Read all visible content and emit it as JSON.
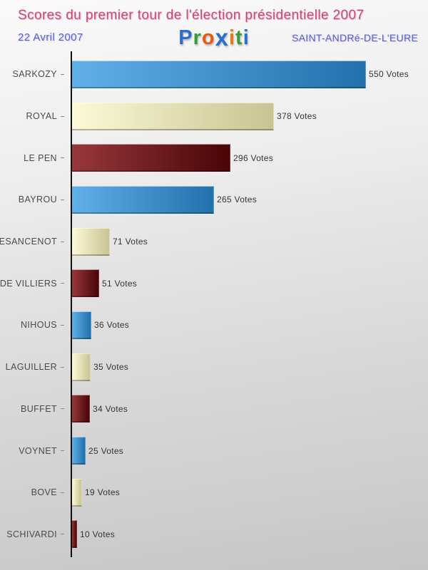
{
  "header": {
    "title": "Scores du premier tour de l'élection présidentielle 2007",
    "date": "22 Avril 2007",
    "place": "SAINT-ANDRé-DE-L'EURE",
    "logo": {
      "name": "Proxiti",
      "letters": [
        {
          "ch": "P",
          "color": "#2a70c8"
        },
        {
          "ch": "r",
          "color": "#3a9a3a"
        },
        {
          "ch": "o",
          "color": "#e55c0f"
        },
        {
          "ch": "x",
          "color": "#2a70c8",
          "bold_x": true
        },
        {
          "ch": "i",
          "color": "#e87b10"
        },
        {
          "ch": "t",
          "color": "#3a9a3a"
        },
        {
          "ch": "i",
          "color": "#2a70c8"
        }
      ]
    }
  },
  "chart_data": {
    "type": "bar",
    "orientation": "horizontal",
    "title": "Scores du premier tour de l'élection présidentielle 2007",
    "subtitle": "22 Avril 2007 — SAINT-ANDRé-DE-L'EURE",
    "categories": [
      "SARKOZY",
      "ROYAL",
      "LE PEN",
      "BAYROU",
      "BESANCENOT",
      "DE VILLIERS",
      "NIHOUS",
      "LAGUILLER",
      "BUFFET",
      "VOYNET",
      "BOVE",
      "SCHIVARDI"
    ],
    "values": [
      550,
      378,
      296,
      265,
      71,
      51,
      36,
      35,
      34,
      25,
      19,
      10
    ],
    "labels": [
      "550 Votes",
      "378 Votes",
      "296 Votes",
      "265 Votes",
      "71 Votes",
      "51 Votes",
      "36 Votes",
      "35 Votes",
      "34 Votes",
      "25 Votes",
      "19 Votes",
      "10 Votes"
    ],
    "colors": [
      "blue",
      "cream",
      "darkred",
      "blue",
      "cream",
      "darkred",
      "blue",
      "cream",
      "darkred",
      "blue",
      "cream",
      "darkred"
    ],
    "palette": {
      "blue": {
        "from": "#61b0e8",
        "to": "#2271ad"
      },
      "cream": {
        "from": "#fcfad8",
        "to": "#c9c493"
      },
      "darkred": {
        "from": "#97383c",
        "to": "#4a0507"
      }
    },
    "value_suffix": " Votes",
    "xlim": [
      0,
      565
    ],
    "grid": false,
    "legend": false,
    "axis_color": "#111111"
  }
}
